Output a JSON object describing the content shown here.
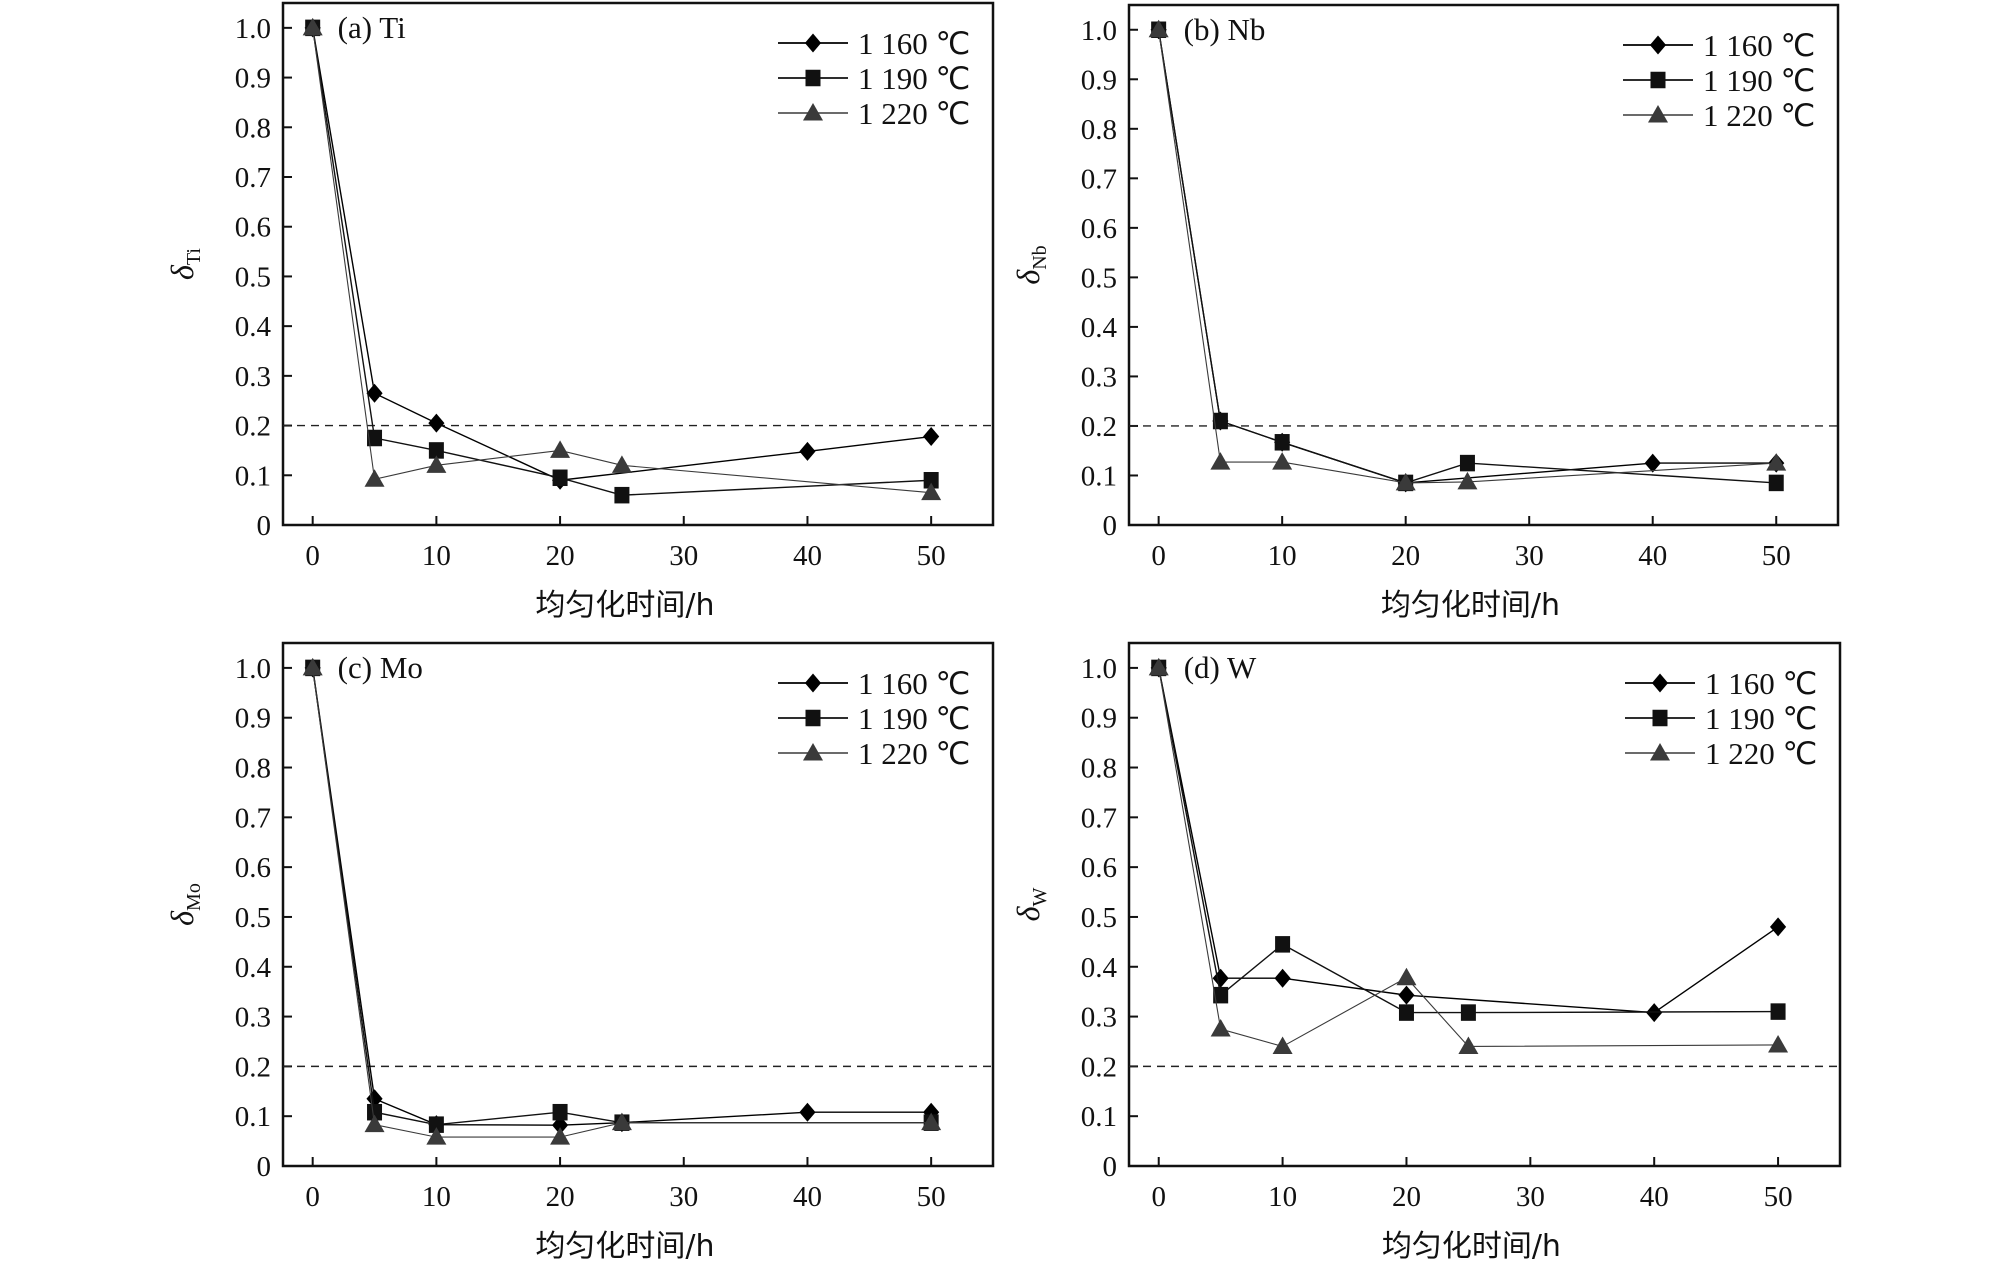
{
  "chart_data": [
    {
      "type": "line",
      "panel_label": "(a) Ti",
      "ylabel_symbol": "δ",
      "ylabel_sub": "Ti",
      "xlabel": "均匀化时间/h",
      "xlim": [
        -2.4,
        55
      ],
      "ylim": [
        0,
        1.05
      ],
      "xticks": [
        0,
        10,
        20,
        30,
        40,
        50
      ],
      "yticks": [
        0,
        0.1,
        0.2,
        0.3,
        0.4,
        0.5,
        0.6,
        0.7,
        0.8,
        0.9,
        1.0
      ],
      "ytick_labels": [
        "0",
        "0.1",
        "0.2",
        "0.3",
        "0.4",
        "0.5",
        "0.6",
        "0.7",
        "0.8",
        "0.9",
        "1.0"
      ],
      "reference_line": 0.2,
      "legend_position": "top-right",
      "series": [
        {
          "name": "1 160 ℃",
          "marker": "diamond",
          "x": [
            0,
            5,
            10,
            20,
            40,
            50
          ],
          "y": [
            1.0,
            0.265,
            0.205,
            0.09,
            0.148,
            0.178
          ]
        },
        {
          "name": "1 190 ℃",
          "marker": "square",
          "x": [
            0,
            5,
            10,
            20,
            25,
            50
          ],
          "y": [
            1.0,
            0.175,
            0.15,
            0.095,
            0.06,
            0.09
          ]
        },
        {
          "name": "1 220 ℃",
          "marker": "triangle",
          "x": [
            0,
            5,
            10,
            20,
            25,
            50
          ],
          "y": [
            1.0,
            0.092,
            0.12,
            0.15,
            0.12,
            0.065
          ]
        }
      ]
    },
    {
      "type": "line",
      "panel_label": "(b) Nb",
      "ylabel_symbol": "δ",
      "ylabel_sub": "Nb",
      "xlabel": "均匀化时间/h",
      "xlim": [
        -2.4,
        55
      ],
      "ylim": [
        0,
        1.05
      ],
      "xticks": [
        0,
        10,
        20,
        30,
        40,
        50
      ],
      "yticks": [
        0,
        0.1,
        0.2,
        0.3,
        0.4,
        0.5,
        0.6,
        0.7,
        0.8,
        0.9,
        1.0
      ],
      "ytick_labels": [
        "0",
        "0.1",
        "0.2",
        "0.3",
        "0.4",
        "0.5",
        "0.6",
        "0.7",
        "0.8",
        "0.9",
        "1.0"
      ],
      "reference_line": 0.2,
      "legend_position": "top-right",
      "series": [
        {
          "name": "1 160 ℃",
          "marker": "diamond",
          "x": [
            0,
            5,
            10,
            20,
            40,
            50
          ],
          "y": [
            1.0,
            0.21,
            0.167,
            0.085,
            0.125,
            0.125
          ]
        },
        {
          "name": "1 190 ℃",
          "marker": "square",
          "x": [
            0,
            5,
            10,
            20,
            25,
            50
          ],
          "y": [
            1.0,
            0.21,
            0.167,
            0.085,
            0.125,
            0.085
          ]
        },
        {
          "name": "1 220 ℃",
          "marker": "triangle",
          "x": [
            0,
            5,
            10,
            20,
            25,
            50
          ],
          "y": [
            1.0,
            0.127,
            0.127,
            0.085,
            0.087,
            0.125
          ]
        }
      ]
    },
    {
      "type": "line",
      "panel_label": "(c) Mo",
      "ylabel_symbol": "δ",
      "ylabel_sub": "Mo",
      "xlabel": "均匀化时间/h",
      "xlim": [
        -2.4,
        55
      ],
      "ylim": [
        0,
        1.05
      ],
      "xticks": [
        0,
        10,
        20,
        30,
        40,
        50
      ],
      "yticks": [
        0,
        0.1,
        0.2,
        0.3,
        0.4,
        0.5,
        0.6,
        0.7,
        0.8,
        0.9,
        1.0
      ],
      "ytick_labels": [
        "0",
        "0.1",
        "0.2",
        "0.3",
        "0.4",
        "0.5",
        "0.6",
        "0.7",
        "0.8",
        "0.9",
        "1.0"
      ],
      "reference_line": 0.2,
      "legend_position": "top-right",
      "series": [
        {
          "name": "1 160 ℃",
          "marker": "diamond",
          "x": [
            0,
            5,
            10,
            20,
            25,
            40,
            50
          ],
          "y": [
            1.0,
            0.135,
            0.083,
            0.082,
            0.087,
            0.108,
            0.108
          ]
        },
        {
          "name": "1 190 ℃",
          "marker": "square",
          "x": [
            0,
            5,
            10,
            20,
            25,
            50
          ],
          "y": [
            1.0,
            0.108,
            0.083,
            0.108,
            0.087,
            0.087
          ]
        },
        {
          "name": "1 220 ℃",
          "marker": "triangle",
          "x": [
            0,
            5,
            10,
            20,
            25,
            50
          ],
          "y": [
            1.0,
            0.083,
            0.058,
            0.058,
            0.087,
            0.087
          ]
        }
      ]
    },
    {
      "type": "line",
      "panel_label": "(d) W",
      "ylabel_symbol": "δ",
      "ylabel_sub": "W",
      "xlabel": "均匀化时间/h",
      "xlim": [
        -2.4,
        55
      ],
      "ylim": [
        0,
        1.05
      ],
      "xticks": [
        0,
        10,
        20,
        30,
        40,
        50
      ],
      "yticks": [
        0,
        0.1,
        0.2,
        0.3,
        0.4,
        0.5,
        0.6,
        0.7,
        0.8,
        0.9,
        1.0
      ],
      "ytick_labels": [
        "0",
        "0.1",
        "0.2",
        "0.3",
        "0.4",
        "0.5",
        "0.6",
        "0.7",
        "0.8",
        "0.9",
        "1.0"
      ],
      "reference_line": 0.2,
      "legend_position": "top-right",
      "series": [
        {
          "name": "1 160 ℃",
          "marker": "diamond",
          "x": [
            0,
            5,
            10,
            20,
            40,
            50
          ],
          "y": [
            1.0,
            0.377,
            0.377,
            0.343,
            0.308,
            0.48
          ]
        },
        {
          "name": "1 190 ℃",
          "marker": "square",
          "x": [
            0,
            5,
            10,
            20,
            25,
            50
          ],
          "y": [
            1.0,
            0.343,
            0.445,
            0.308,
            0.308,
            0.31
          ]
        },
        {
          "name": "1 220 ℃",
          "marker": "triangle",
          "x": [
            0,
            5,
            10,
            20,
            25,
            50
          ],
          "y": [
            1.0,
            0.275,
            0.24,
            0.378,
            0.24,
            0.243
          ]
        }
      ]
    }
  ],
  "colors": {
    "series_1160": "#000000",
    "series_1190": "#111111",
    "series_1220": "#3a3a3a",
    "axis": "#111111"
  }
}
